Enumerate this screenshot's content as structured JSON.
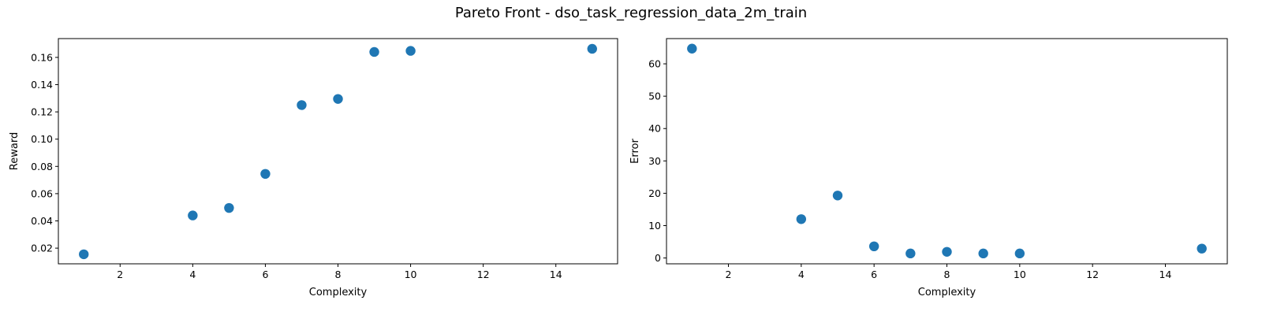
{
  "figure": {
    "title": "Pareto Front - dso_task_regression_data_2m_train"
  },
  "chart_data": [
    {
      "type": "scatter",
      "xlabel": "Complexity",
      "ylabel": "Reward",
      "x": [
        1,
        4,
        5,
        6,
        7,
        8,
        9,
        10,
        15
      ],
      "y": [
        0.0155,
        0.044,
        0.0495,
        0.0745,
        0.125,
        0.1295,
        0.164,
        0.1648,
        0.1663
      ],
      "xlim": [
        0.3,
        15.7
      ],
      "ylim": [
        0.0085,
        0.1738
      ],
      "xticks": [
        2,
        4,
        6,
        8,
        10,
        12,
        14
      ],
      "yticks": [
        0.02,
        0.04,
        0.06,
        0.08,
        0.1,
        0.12,
        0.14,
        0.16
      ],
      "ytick_labels": [
        "0.02",
        "0.04",
        "0.06",
        "0.08",
        "0.10",
        "0.12",
        "0.14",
        "0.16"
      ],
      "grid": false,
      "marker_color": "#1f77b4"
    },
    {
      "type": "scatter",
      "xlabel": "Complexity",
      "ylabel": "Error",
      "x": [
        1,
        4,
        5,
        6,
        7,
        8,
        9,
        10,
        15
      ],
      "y": [
        64.7,
        12.0,
        19.3,
        3.6,
        1.4,
        1.9,
        1.4,
        1.4,
        2.9
      ],
      "xlim": [
        0.3,
        15.7
      ],
      "ylim": [
        -1.8,
        67.8
      ],
      "xticks": [
        2,
        4,
        6,
        8,
        10,
        12,
        14
      ],
      "yticks": [
        0,
        10,
        20,
        30,
        40,
        50,
        60
      ],
      "ytick_labels": [
        "0",
        "10",
        "20",
        "30",
        "40",
        "50",
        "60"
      ],
      "grid": false,
      "marker_color": "#1f77b4"
    }
  ]
}
